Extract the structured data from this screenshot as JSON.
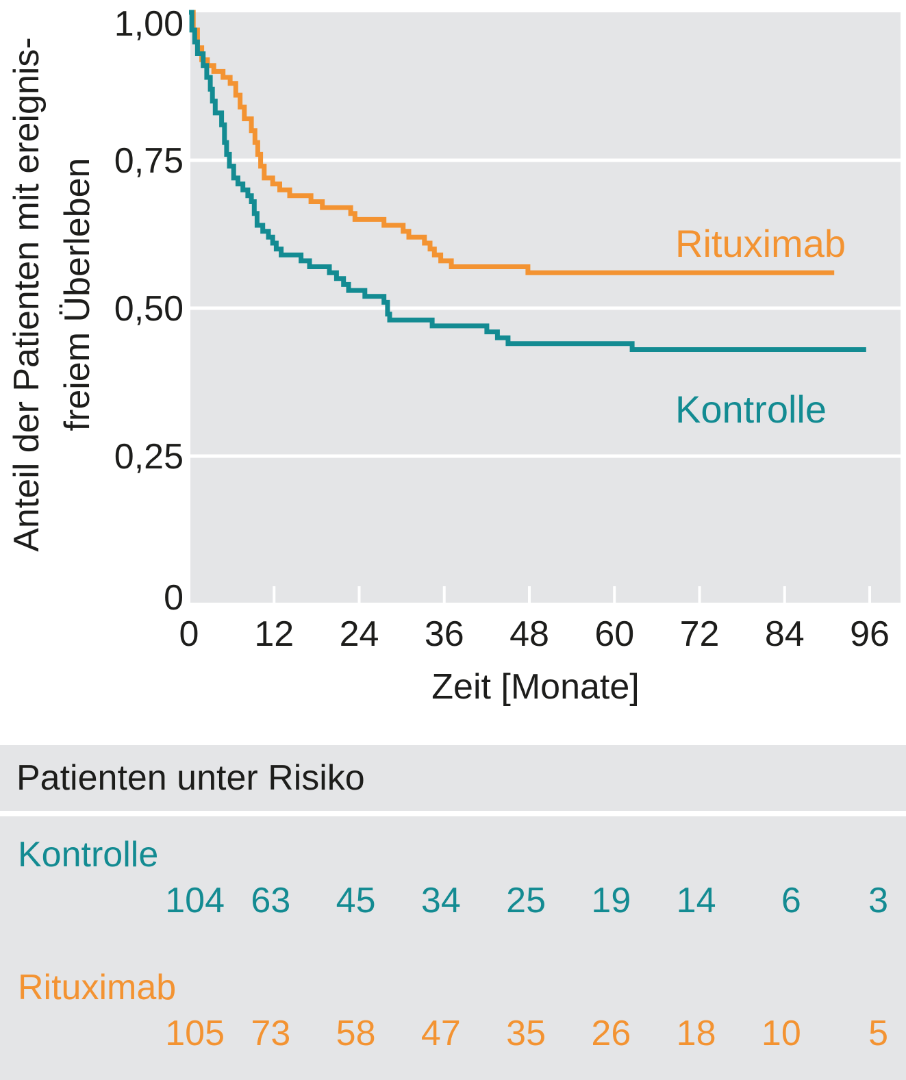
{
  "chart_data": {
    "type": "line",
    "step": true,
    "xlabel": "Zeit [Monate]",
    "ylabel_line1": "Anteil der Patienten mit ereignis-",
    "ylabel_line2": "freiem Überleben",
    "xlim": [
      0,
      96
    ],
    "ylim": [
      0,
      1
    ],
    "x_ticks": [
      "0",
      "12",
      "24",
      "36",
      "48",
      "60",
      "72",
      "84",
      "96"
    ],
    "y_ticks": [
      "0",
      "0,25",
      "0,50",
      "0,75",
      "1,00"
    ],
    "grid": true,
    "series": [
      {
        "name": "Rituximab",
        "color": "#f39332",
        "points": [
          [
            0,
            1.0
          ],
          [
            0.6,
            0.97
          ],
          [
            1.2,
            0.94
          ],
          [
            1.8,
            0.92
          ],
          [
            2.6,
            0.91
          ],
          [
            3.5,
            0.9
          ],
          [
            4.8,
            0.89
          ],
          [
            5.8,
            0.88
          ],
          [
            6.6,
            0.86
          ],
          [
            7.2,
            0.84
          ],
          [
            7.8,
            0.82
          ],
          [
            8.8,
            0.8
          ],
          [
            9.3,
            0.78
          ],
          [
            9.7,
            0.76
          ],
          [
            10.1,
            0.74
          ],
          [
            10.6,
            0.72
          ],
          [
            11.8,
            0.71
          ],
          [
            12.8,
            0.7
          ],
          [
            14.2,
            0.69
          ],
          [
            17.2,
            0.68
          ],
          [
            18.8,
            0.67
          ],
          [
            22.8,
            0.66
          ],
          [
            23.4,
            0.65
          ],
          [
            27.5,
            0.64
          ],
          [
            30.2,
            0.63
          ],
          [
            31.0,
            0.62
          ],
          [
            33.2,
            0.61
          ],
          [
            34.0,
            0.6
          ],
          [
            34.6,
            0.59
          ],
          [
            35.5,
            0.58
          ],
          [
            37.0,
            0.57
          ],
          [
            47.8,
            0.56
          ],
          [
            91.0,
            0.56
          ]
        ]
      },
      {
        "name": "Kontrolle",
        "color": "#138b92",
        "points": [
          [
            0,
            1.0
          ],
          [
            0.4,
            0.97
          ],
          [
            0.8,
            0.95
          ],
          [
            1.2,
            0.93
          ],
          [
            2.0,
            0.91
          ],
          [
            2.5,
            0.89
          ],
          [
            3.0,
            0.87
          ],
          [
            3.3,
            0.85
          ],
          [
            3.7,
            0.83
          ],
          [
            4.6,
            0.81
          ],
          [
            5.0,
            0.78
          ],
          [
            5.3,
            0.76
          ],
          [
            5.7,
            0.74
          ],
          [
            6.3,
            0.72
          ],
          [
            6.9,
            0.71
          ],
          [
            7.6,
            0.7
          ],
          [
            8.3,
            0.69
          ],
          [
            8.8,
            0.68
          ],
          [
            9.2,
            0.66
          ],
          [
            9.6,
            0.64
          ],
          [
            10.4,
            0.63
          ],
          [
            11.2,
            0.62
          ],
          [
            11.8,
            0.61
          ],
          [
            12.3,
            0.6
          ],
          [
            13.0,
            0.59
          ],
          [
            15.8,
            0.58
          ],
          [
            17.0,
            0.57
          ],
          [
            19.8,
            0.56
          ],
          [
            20.8,
            0.55
          ],
          [
            21.8,
            0.54
          ],
          [
            22.5,
            0.53
          ],
          [
            24.8,
            0.52
          ],
          [
            27.5,
            0.51
          ],
          [
            28.0,
            0.49
          ],
          [
            28.3,
            0.48
          ],
          [
            34.3,
            0.47
          ],
          [
            42.0,
            0.46
          ],
          [
            43.5,
            0.45
          ],
          [
            45.0,
            0.44
          ],
          [
            62.5,
            0.43
          ],
          [
            95.5,
            0.43
          ]
        ]
      }
    ]
  },
  "labels": {
    "rituximab": "Rituximab",
    "kontrolle": "Kontrolle"
  },
  "risk_table": {
    "header": "Patienten unter Risiko",
    "kontrolle_label": "Kontrolle",
    "rituximab_label": "Rituximab",
    "kontrolle": [
      "104",
      "63",
      "45",
      "34",
      "25",
      "19",
      "14",
      "6",
      "3"
    ],
    "rituximab": [
      "105",
      "73",
      "58",
      "47",
      "35",
      "26",
      "18",
      "10",
      "5"
    ]
  },
  "colors": {
    "rituximab": "#f39332",
    "kontrolle": "#138b92",
    "plot_background": "#e4e5e7",
    "grid": "#ffffff"
  }
}
